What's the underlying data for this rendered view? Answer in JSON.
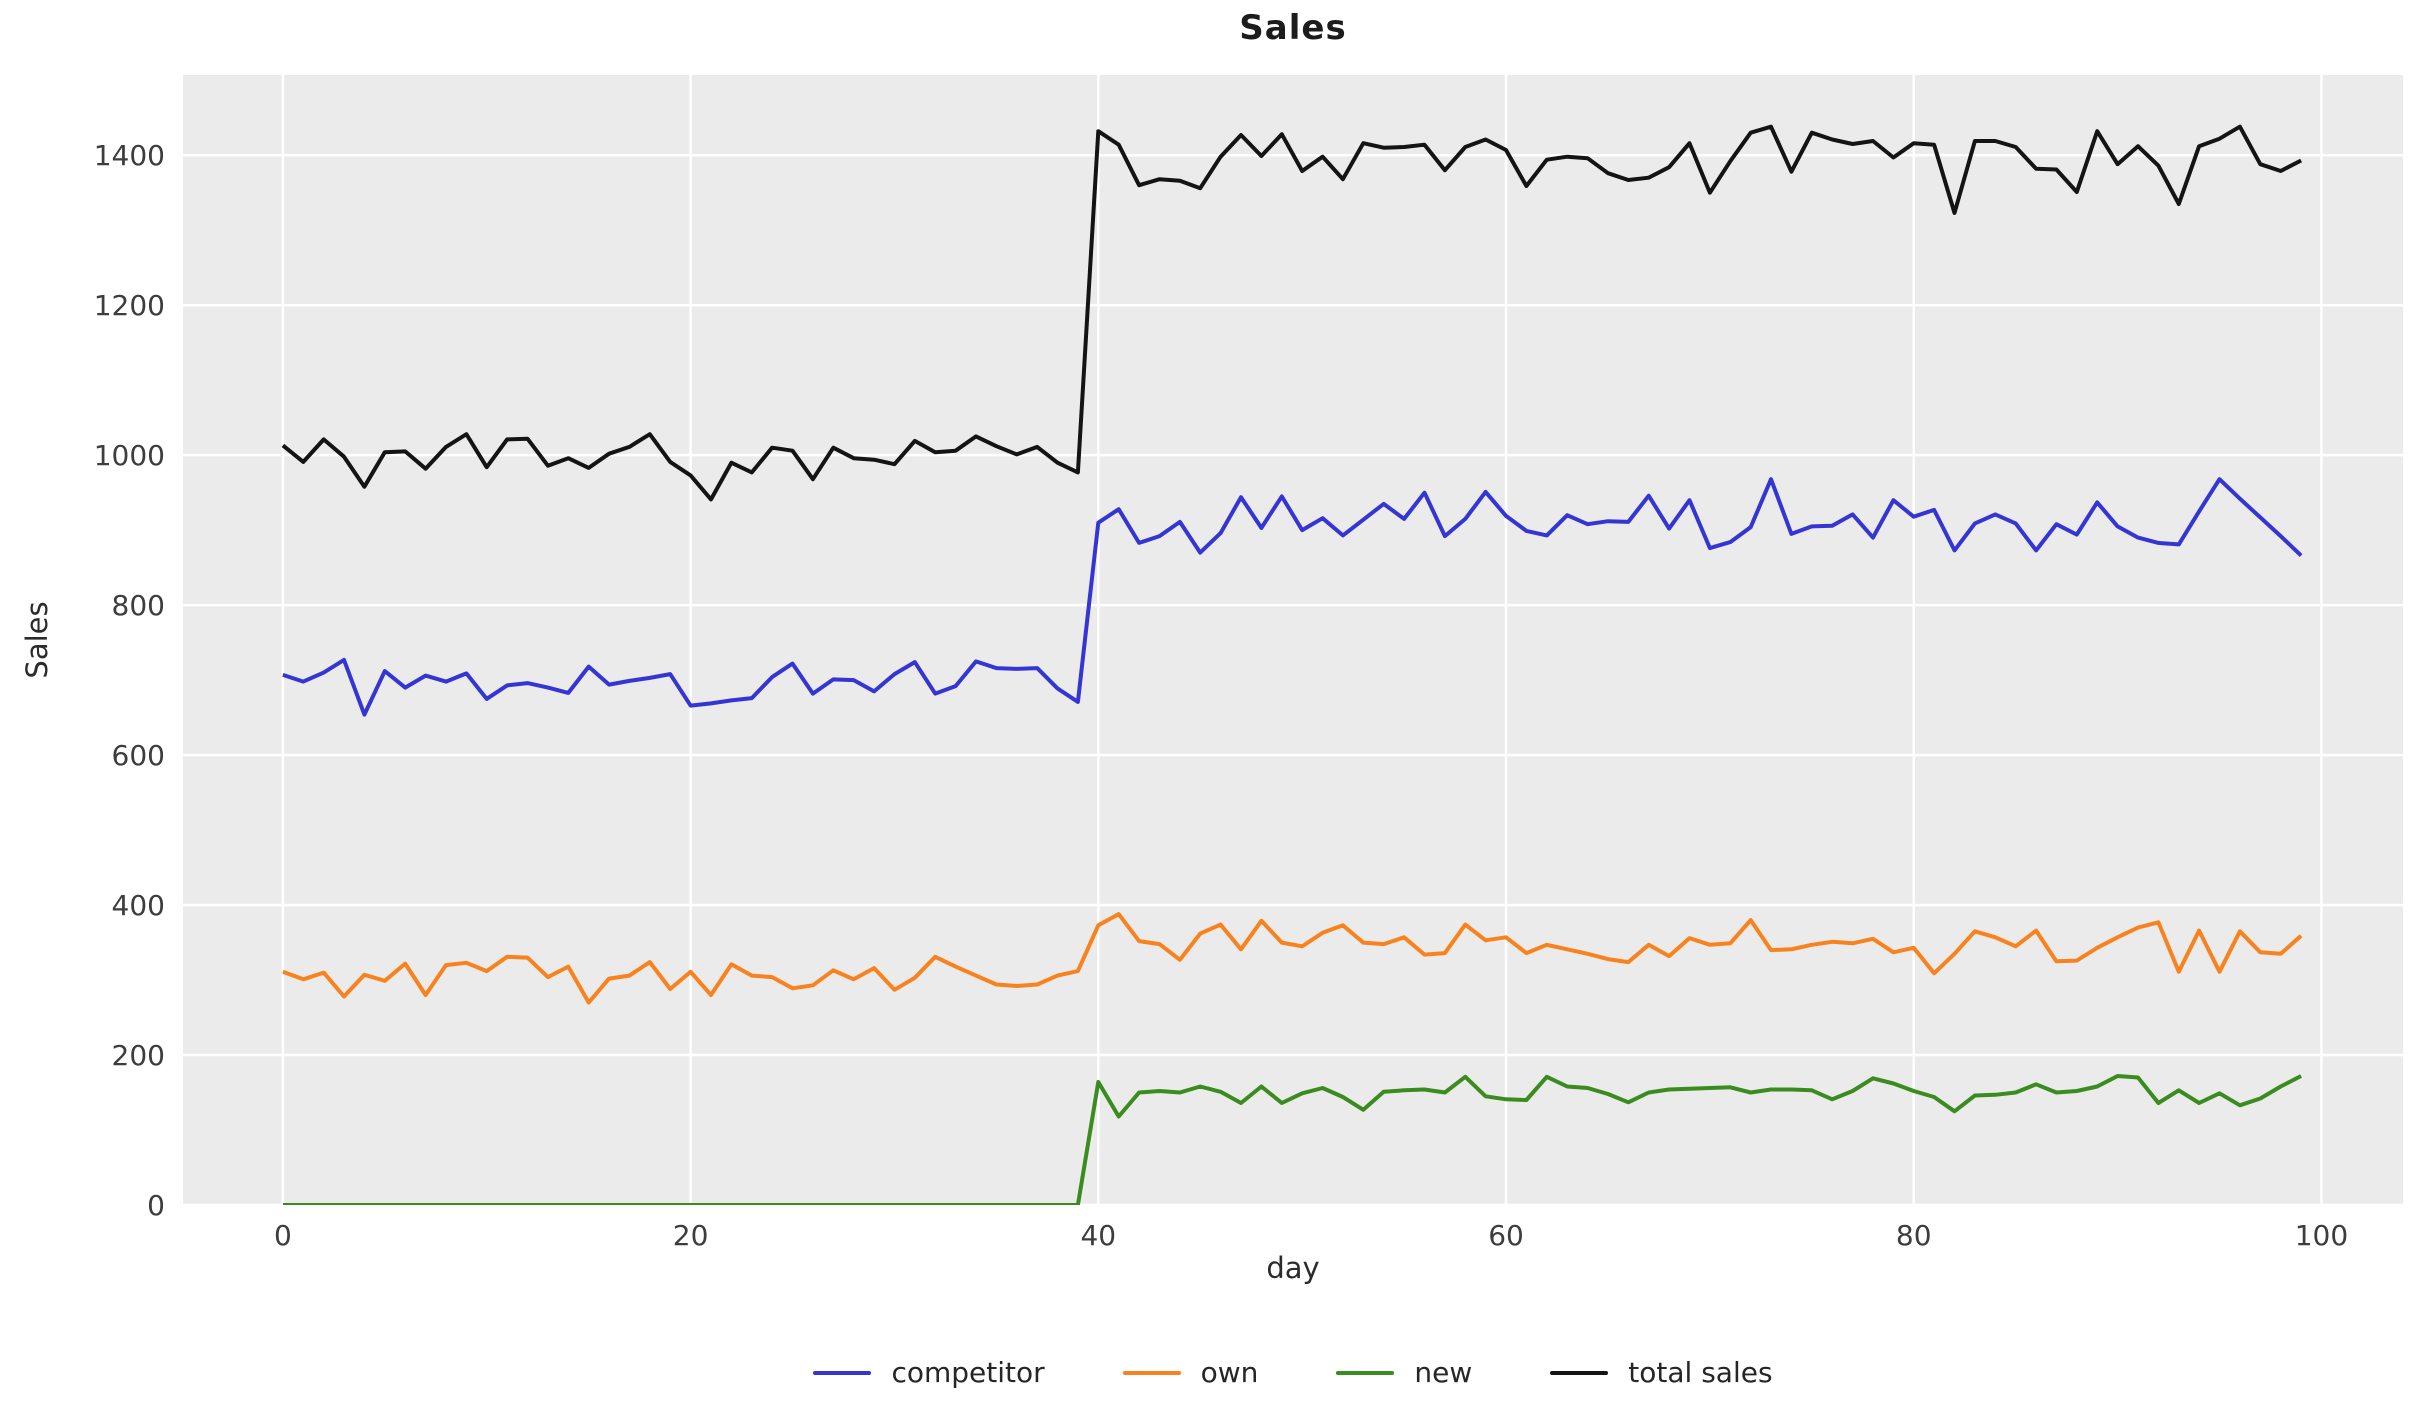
{
  "title": "Sales",
  "axes": {
    "xlabel": "day",
    "ylabel": "Sales",
    "xlim": [
      -4.9,
      104
    ],
    "ylim": [
      0,
      1507
    ],
    "xticks": [
      0,
      20,
      40,
      60,
      80,
      100
    ],
    "yticks": [
      0,
      200,
      400,
      600,
      800,
      1000,
      1200,
      1400
    ],
    "grid": true,
    "plot_bg": "#ebebeb",
    "grid_color": "#ffffff",
    "tick_color": "#3d3d3d"
  },
  "legend": {
    "position": "bottom-center",
    "entries": [
      {
        "label": "competitor"
      },
      {
        "label": "own"
      },
      {
        "label": "new"
      },
      {
        "label": "total sales"
      }
    ]
  },
  "chart_data": {
    "type": "line",
    "title": "Sales",
    "xlabel": "day",
    "ylabel": "Sales",
    "x": [
      0,
      1,
      2,
      3,
      4,
      5,
      6,
      7,
      8,
      9,
      10,
      11,
      12,
      13,
      14,
      15,
      16,
      17,
      18,
      19,
      20,
      21,
      22,
      23,
      24,
      25,
      26,
      27,
      28,
      29,
      30,
      31,
      32,
      33,
      34,
      35,
      36,
      37,
      38,
      39,
      40,
      41,
      42,
      43,
      44,
      45,
      46,
      47,
      48,
      49,
      50,
      51,
      52,
      53,
      54,
      55,
      56,
      57,
      58,
      59,
      60,
      61,
      62,
      63,
      64,
      65,
      66,
      67,
      68,
      69,
      70,
      71,
      72,
      73,
      74,
      75,
      76,
      77,
      78,
      79,
      80,
      81,
      82,
      83,
      84,
      85,
      86,
      87,
      88,
      89,
      90,
      91,
      92,
      93,
      94,
      95,
      96,
      97,
      98,
      99
    ],
    "series": [
      {
        "name": "competitor",
        "color": "#3535d3",
        "values": [
          707,
          698,
          710,
          727,
          654,
          712,
          690,
          706,
          698,
          709,
          675,
          693,
          696,
          690,
          683,
          718,
          694,
          699,
          703,
          708,
          666,
          669,
          673,
          676,
          704,
          722,
          682,
          701,
          700,
          685,
          708,
          724,
          682,
          692,
          725,
          716,
          715,
          716,
          689,
          671,
          910,
          928,
          883,
          892,
          911,
          870,
          896,
          944,
          903,
          945,
          900,
          916,
          893,
          914,
          935,
          915,
          950,
          892,
          915,
          951,
          919,
          899,
          893,
          920,
          908,
          912,
          911,
          946,
          902,
          940,
          876,
          884,
          904,
          968,
          895,
          905,
          906,
          921,
          890,
          940,
          918,
          927,
          873,
          909,
          921,
          909,
          873,
          908,
          894,
          937,
          905,
          890,
          883,
          881,
          925,
          968,
          942,
          917,
          892,
          866
        ]
      },
      {
        "name": "own",
        "color": "#f8821e",
        "values": [
          311,
          301,
          310,
          278,
          307,
          299,
          322,
          280,
          320,
          323,
          312,
          331,
          330,
          304,
          318,
          270,
          302,
          306,
          324,
          288,
          311,
          280,
          321,
          306,
          304,
          289,
          293,
          313,
          301,
          316,
          287,
          303,
          331,
          318,
          306,
          294,
          292,
          294,
          306,
          312,
          373,
          388,
          352,
          348,
          327,
          362,
          374,
          341,
          379,
          350,
          345,
          363,
          373,
          350,
          348,
          357,
          334,
          336,
          374,
          353,
          357,
          336,
          347,
          341,
          335,
          328,
          324,
          347,
          332,
          356,
          347,
          349,
          380,
          340,
          341,
          347,
          351,
          349,
          355,
          337,
          343,
          309,
          335,
          365,
          357,
          345,
          366,
          325,
          326,
          343,
          357,
          370,
          377,
          311,
          366,
          311,
          365,
          337,
          335,
          359
        ]
      },
      {
        "name": "new",
        "color": "#3a8c1f",
        "values": [
          0,
          0,
          0,
          0,
          0,
          0,
          0,
          0,
          0,
          0,
          0,
          0,
          0,
          0,
          0,
          0,
          0,
          0,
          0,
          0,
          0,
          0,
          0,
          0,
          0,
          0,
          0,
          0,
          0,
          0,
          0,
          0,
          0,
          0,
          0,
          0,
          0,
          0,
          0,
          0,
          164,
          118,
          150,
          152,
          150,
          158,
          151,
          136,
          158,
          136,
          149,
          156,
          144,
          127,
          151,
          153,
          154,
          150,
          171,
          145,
          141,
          140,
          171,
          158,
          156,
          148,
          137,
          150,
          154,
          155,
          156,
          157,
          150,
          154,
          154,
          153,
          141,
          152,
          169,
          162,
          152,
          144,
          125,
          146,
          147,
          150,
          161,
          150,
          152,
          158,
          172,
          170,
          136,
          153,
          136,
          149,
          133,
          142,
          158,
          172
        ]
      },
      {
        "name": "total sales",
        "color": "#141414",
        "values": [
          1013,
          991,
          1021,
          998,
          958,
          1004,
          1005,
          982,
          1011,
          1028,
          984,
          1021,
          1022,
          986,
          996,
          983,
          1002,
          1011,
          1028,
          991,
          973,
          941,
          990,
          977,
          1010,
          1006,
          968,
          1010,
          996,
          994,
          988,
          1019,
          1004,
          1006,
          1025,
          1012,
          1001,
          1011,
          990,
          977,
          1432,
          1414,
          1360,
          1368,
          1366,
          1356,
          1398,
          1427,
          1399,
          1428,
          1379,
          1398,
          1368,
          1416,
          1410,
          1411,
          1414,
          1380,
          1411,
          1421,
          1407,
          1359,
          1394,
          1398,
          1396,
          1376,
          1367,
          1370,
          1384,
          1416,
          1350,
          1392,
          1430,
          1438,
          1378,
          1430,
          1421,
          1415,
          1419,
          1397,
          1416,
          1414,
          1323,
          1419,
          1419,
          1411,
          1382,
          1381,
          1351,
          1432,
          1388,
          1412,
          1386,
          1335,
          1412,
          1422,
          1438,
          1388,
          1379,
          1393
        ]
      }
    ]
  }
}
